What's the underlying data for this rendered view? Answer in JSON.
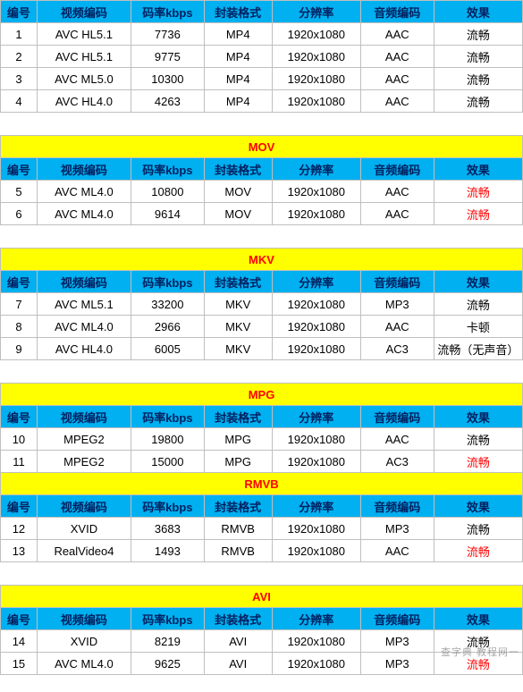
{
  "columns": [
    "编号",
    "视频编码",
    "码率kbps",
    "封装格式",
    "分辨率",
    "音频编码",
    "效果"
  ],
  "colors": {
    "section_bg": "#ffff00",
    "section_text": "#ff0000",
    "header_bg": "#00b0f0",
    "header_text": "#002060",
    "border": "#bfbfbf",
    "red": "#ff0000"
  },
  "sections": [
    {
      "title": null,
      "rows": [
        {
          "cells": [
            "1",
            "AVC HL5.1",
            "7736",
            "MP4",
            "1920x1080",
            "AAC",
            "流畅"
          ],
          "red": []
        },
        {
          "cells": [
            "2",
            "AVC HL5.1",
            "9775",
            "MP4",
            "1920x1080",
            "AAC",
            "流畅"
          ],
          "red": []
        },
        {
          "cells": [
            "3",
            "AVC ML5.0",
            "10300",
            "MP4",
            "1920x1080",
            "AAC",
            "流畅"
          ],
          "red": []
        },
        {
          "cells": [
            "4",
            "AVC HL4.0",
            "4263",
            "MP4",
            "1920x1080",
            "AAC",
            "流畅"
          ],
          "red": []
        }
      ]
    },
    {
      "title": "MOV",
      "rows": [
        {
          "cells": [
            "5",
            "AVC ML4.0",
            "10800",
            "MOV",
            "1920x1080",
            "AAC",
            "流畅"
          ],
          "red": [
            6
          ]
        },
        {
          "cells": [
            "6",
            "AVC ML4.0",
            "9614",
            "MOV",
            "1920x1080",
            "AAC",
            "流畅"
          ],
          "red": [
            6
          ]
        }
      ]
    },
    {
      "title": "MKV",
      "rows": [
        {
          "cells": [
            "7",
            "AVC ML5.1",
            "33200",
            "MKV",
            "1920x1080",
            "MP3",
            "流畅"
          ],
          "red": []
        },
        {
          "cells": [
            "8",
            "AVC ML4.0",
            "2966",
            "MKV",
            "1920x1080",
            "AAC",
            "卡顿"
          ],
          "red": []
        },
        {
          "cells": [
            "9",
            "AVC HL4.0",
            "6005",
            "MKV",
            "1920x1080",
            "AC3",
            "流畅（无声音）"
          ],
          "red": []
        }
      ]
    },
    {
      "title": "MPG",
      "rows": [
        {
          "cells": [
            "10",
            "MPEG2",
            "19800",
            "MPG",
            "1920x1080",
            "AAC",
            "流畅"
          ],
          "red": []
        },
        {
          "cells": [
            "11",
            "MPEG2",
            "15000",
            "MPG",
            "1920x1080",
            "AC3",
            "流畅"
          ],
          "red": [
            6
          ]
        }
      ]
    },
    {
      "title": "RMVB",
      "rows": [
        {
          "cells": [
            "12",
            "XVID",
            "3683",
            "RMVB",
            "1920x1080",
            "MP3",
            "流畅"
          ],
          "red": []
        },
        {
          "cells": [
            "13",
            "RealVideo4",
            "1493",
            "RMVB",
            "1920x1080",
            "AAC",
            "流畅"
          ],
          "red": [
            6
          ]
        }
      ]
    },
    {
      "title": "AVI",
      "rows": [
        {
          "cells": [
            "14",
            "XVID",
            "8219",
            "AVI",
            "1920x1080",
            "MP3",
            "流畅"
          ],
          "red": []
        },
        {
          "cells": [
            "15",
            "AVC ML4.0",
            "9625",
            "AVI",
            "1920x1080",
            "MP3",
            "流畅"
          ],
          "red": [
            6
          ]
        }
      ]
    }
  ],
  "watermark": "查字典 教程网一",
  "gap_after_section_indexes": [
    0,
    1,
    2,
    4
  ]
}
